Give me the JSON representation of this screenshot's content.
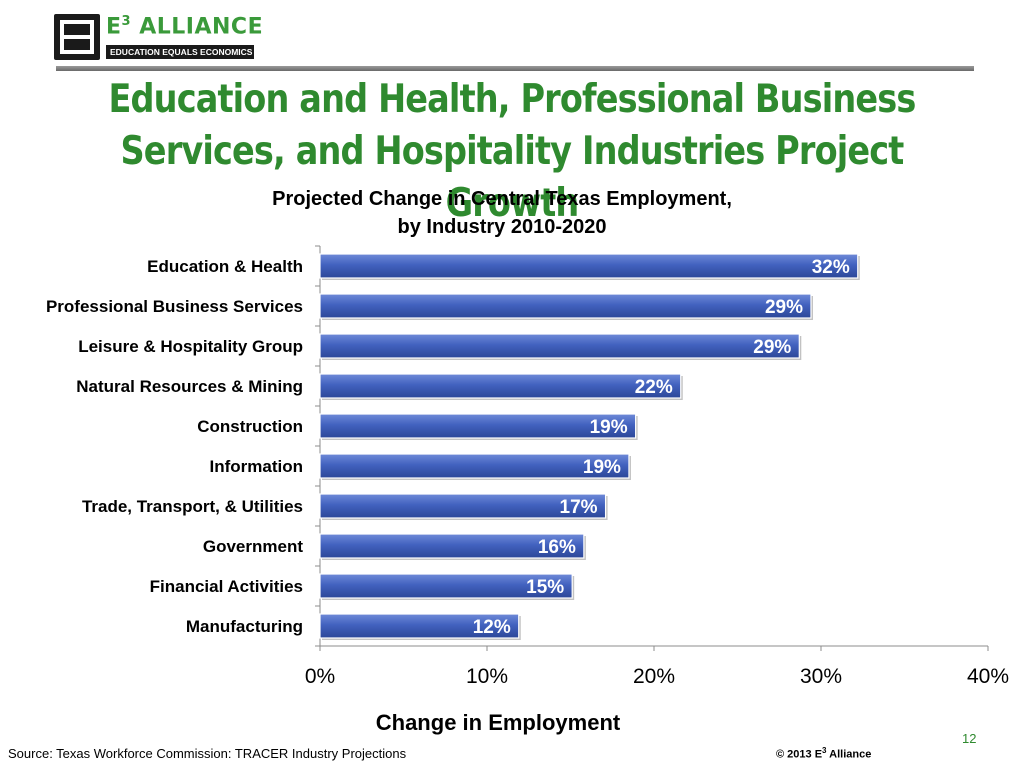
{
  "logo": {
    "name": "E",
    "name_sup": "3",
    "name_rest": " ALLIANCE",
    "tagline": "EDUCATION EQUALS ECONOMICS"
  },
  "slide": {
    "title_line1": "Education and Health, Professional Business",
    "title_line2": "Services, and Hospitality Industries Project Growth",
    "page_number": "12"
  },
  "footer": {
    "source": "Source: Texas Workforce Commission: TRACER Industry Projections",
    "copyright_pre": "© 2013 E",
    "copyright_sup": "3",
    "copyright_post": " Alliance"
  },
  "colors": {
    "title_green": "#2f8a2f",
    "bar_fill": "#3f5fb8",
    "bar_edge": "#2a4490"
  },
  "chart_data": {
    "type": "bar",
    "orientation": "horizontal",
    "title": "Projected Change in Central Texas Employment,",
    "subtitle": "by Industry 2010-2020",
    "xlabel": "Change in Employment",
    "ylabel": "",
    "xlim": [
      0,
      40
    ],
    "xticks": [
      "0%",
      "10%",
      "20%",
      "30%",
      "40%"
    ],
    "grid": false,
    "categories": [
      "Education & Health",
      "Professional Business Services",
      "Leisure & Hospitality Group",
      "Natural Resources & Mining",
      "Construction",
      "Information",
      "Trade, Transport, & Utilities",
      "Government",
      "Financial Activities",
      "Manufacturing"
    ],
    "values": [
      32.2,
      29.4,
      28.7,
      21.6,
      18.9,
      18.5,
      17.1,
      15.8,
      15.1,
      11.9
    ],
    "data_labels": [
      "32%",
      "29%",
      "29%",
      "22%",
      "19%",
      "19%",
      "17%",
      "16%",
      "15%",
      "12%"
    ]
  }
}
